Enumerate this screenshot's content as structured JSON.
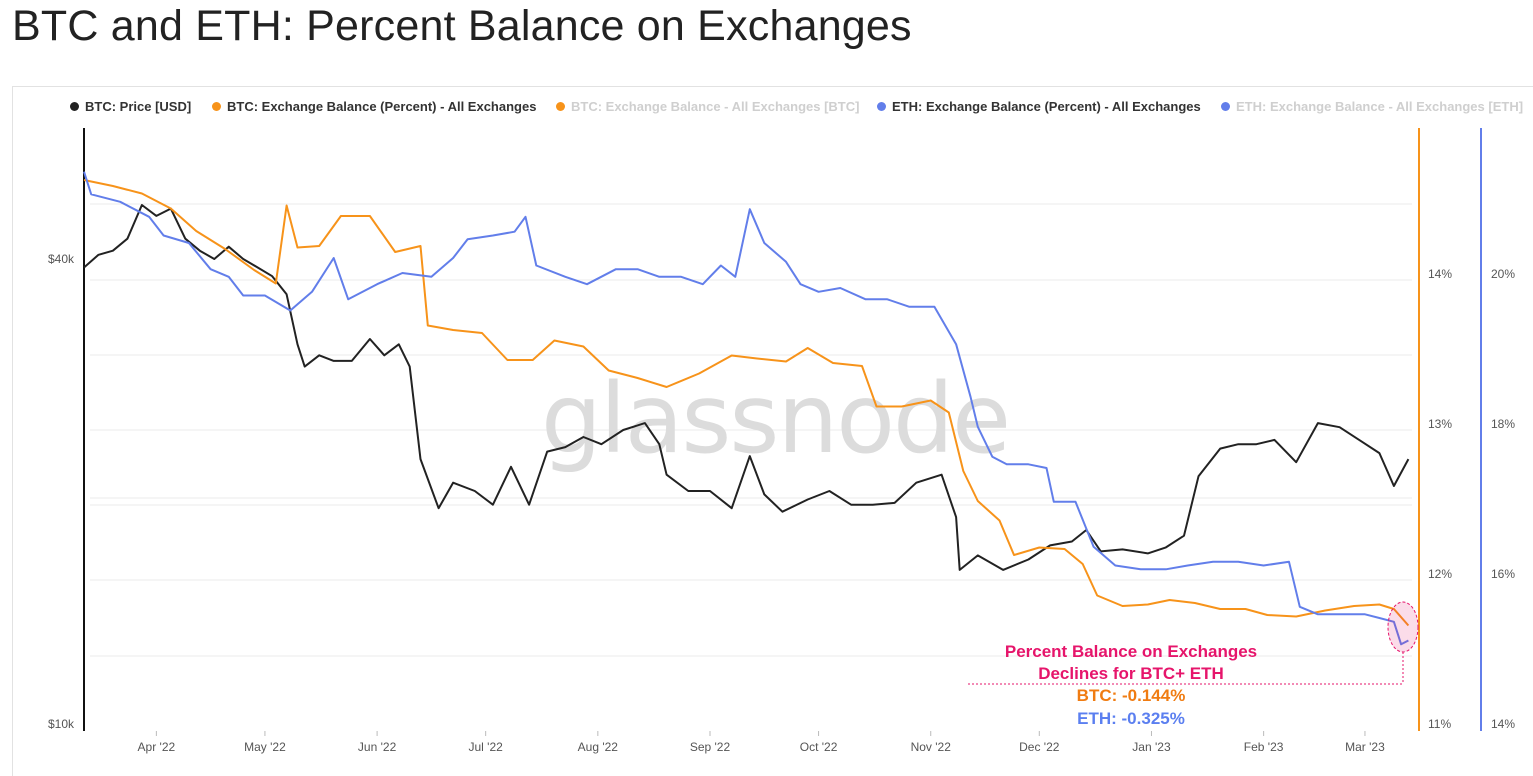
{
  "title": "BTC and ETH: Percent Balance on Exchanges",
  "watermark": "glassnode",
  "legend": [
    {
      "label": "BTC: Price [USD]",
      "color": "#222222",
      "active": true
    },
    {
      "label": "BTC: Exchange Balance (Percent) - All Exchanges",
      "color": "#f7931a",
      "active": true
    },
    {
      "label": "BTC: Exchange Balance - All Exchanges [BTC]",
      "color": "#f7931a",
      "active": false
    },
    {
      "label": "ETH: Exchange Balance (Percent) - All Exchanges",
      "color": "#627eea",
      "active": true
    },
    {
      "label": "ETH: Exchange Balance - All Exchanges [ETH]",
      "color": "#627eea",
      "active": false
    }
  ],
  "annotation": {
    "headline_1": "Percent Balance on Exchanges",
    "headline_2": "Declines for BTC+ ETH",
    "btc": "BTC: -0.144%",
    "eth": "ETH: -0.325%",
    "headline_color": "#e6156b",
    "btc_color": "#f07c12",
    "eth_color": "#5b7ff0"
  },
  "chart_data": {
    "type": "line",
    "x_ticks": [
      "Apr '22",
      "May '22",
      "Jun '22",
      "Jul '22",
      "Aug '22",
      "Sep '22",
      "Oct '22",
      "Nov '22",
      "Dec '22",
      "Jan '23",
      "Feb '23",
      "Mar '23"
    ],
    "left_axis": {
      "ticks": [
        "$40k",
        "$10k"
      ],
      "scale": "log"
    },
    "btc_pct_axis": {
      "ticks": [
        "14%",
        "13%",
        "12%",
        "11%"
      ],
      "range": [
        11,
        15
      ]
    },
    "eth_pct_axis": {
      "ticks": [
        "20%",
        "18%",
        "16%",
        "14%"
      ],
      "range": [
        14,
        22
      ]
    },
    "series": [
      {
        "name": "BTC: Price [USD]",
        "color": "#222222",
        "axis": "price",
        "points": [
          [
            "2022-03-12",
            39000
          ],
          [
            "2022-03-16",
            40500
          ],
          [
            "2022-03-20",
            41000
          ],
          [
            "2022-03-24",
            42500
          ],
          [
            "2022-03-28",
            47000
          ],
          [
            "2022-04-01",
            45500
          ],
          [
            "2022-04-05",
            46500
          ],
          [
            "2022-04-09",
            42500
          ],
          [
            "2022-04-13",
            41000
          ],
          [
            "2022-04-17",
            40000
          ],
          [
            "2022-04-21",
            41500
          ],
          [
            "2022-04-25",
            40000
          ],
          [
            "2022-04-29",
            39000
          ],
          [
            "2022-05-03",
            38000
          ],
          [
            "2022-05-07",
            36000
          ],
          [
            "2022-05-10",
            31000
          ],
          [
            "2022-05-12",
            29000
          ],
          [
            "2022-05-16",
            30000
          ],
          [
            "2022-05-20",
            29500
          ],
          [
            "2022-05-25",
            29500
          ],
          [
            "2022-05-30",
            31500
          ],
          [
            "2022-06-03",
            30000
          ],
          [
            "2022-06-07",
            31000
          ],
          [
            "2022-06-10",
            29000
          ],
          [
            "2022-06-13",
            22000
          ],
          [
            "2022-06-18",
            19000
          ],
          [
            "2022-06-22",
            20500
          ],
          [
            "2022-06-28",
            20000
          ],
          [
            "2022-07-03",
            19200
          ],
          [
            "2022-07-08",
            21500
          ],
          [
            "2022-07-13",
            19200
          ],
          [
            "2022-07-18",
            22500
          ],
          [
            "2022-07-23",
            22800
          ],
          [
            "2022-07-28",
            23500
          ],
          [
            "2022-08-02",
            23000
          ],
          [
            "2022-08-08",
            24000
          ],
          [
            "2022-08-14",
            24500
          ],
          [
            "2022-08-18",
            23000
          ],
          [
            "2022-08-20",
            21000
          ],
          [
            "2022-08-26",
            20000
          ],
          [
            "2022-09-01",
            20000
          ],
          [
            "2022-09-07",
            19000
          ],
          [
            "2022-09-12",
            22200
          ],
          [
            "2022-09-16",
            19800
          ],
          [
            "2022-09-21",
            18800
          ],
          [
            "2022-09-28",
            19500
          ],
          [
            "2022-10-04",
            20000
          ],
          [
            "2022-10-10",
            19200
          ],
          [
            "2022-10-16",
            19200
          ],
          [
            "2022-10-22",
            19300
          ],
          [
            "2022-10-28",
            20500
          ],
          [
            "2022-11-04",
            21000
          ],
          [
            "2022-11-08",
            18500
          ],
          [
            "2022-11-09",
            15800
          ],
          [
            "2022-11-14",
            16500
          ],
          [
            "2022-11-21",
            15800
          ],
          [
            "2022-11-28",
            16300
          ],
          [
            "2022-12-04",
            17000
          ],
          [
            "2022-12-10",
            17200
          ],
          [
            "2022-12-14",
            17800
          ],
          [
            "2022-12-18",
            16700
          ],
          [
            "2022-12-24",
            16800
          ],
          [
            "2022-12-31",
            16600
          ],
          [
            "2023-01-05",
            16900
          ],
          [
            "2023-01-10",
            17500
          ],
          [
            "2023-01-14",
            20900
          ],
          [
            "2023-01-20",
            22700
          ],
          [
            "2023-01-25",
            23000
          ],
          [
            "2023-01-30",
            23000
          ],
          [
            "2023-02-04",
            23300
          ],
          [
            "2023-02-10",
            21800
          ],
          [
            "2023-02-16",
            24500
          ],
          [
            "2023-02-22",
            24200
          ],
          [
            "2023-02-28",
            23200
          ],
          [
            "2023-03-05",
            22400
          ],
          [
            "2023-03-09",
            20300
          ],
          [
            "2023-03-13",
            22000
          ]
        ]
      },
      {
        "name": "BTC: Exchange Balance (Percent) - All Exchanges",
        "color": "#f7931a",
        "axis": "btc_pct",
        "points": [
          [
            "2022-03-12",
            14.62
          ],
          [
            "2022-03-20",
            14.58
          ],
          [
            "2022-03-28",
            14.53
          ],
          [
            "2022-04-05",
            14.43
          ],
          [
            "2022-04-12",
            14.28
          ],
          [
            "2022-04-20",
            14.16
          ],
          [
            "2022-04-28",
            14.02
          ],
          [
            "2022-05-04",
            13.93
          ],
          [
            "2022-05-07",
            14.45
          ],
          [
            "2022-05-10",
            14.17
          ],
          [
            "2022-05-16",
            14.18
          ],
          [
            "2022-05-22",
            14.38
          ],
          [
            "2022-05-30",
            14.38
          ],
          [
            "2022-06-06",
            14.14
          ],
          [
            "2022-06-13",
            14.18
          ],
          [
            "2022-06-15",
            13.65
          ],
          [
            "2022-06-22",
            13.62
          ],
          [
            "2022-06-30",
            13.6
          ],
          [
            "2022-07-07",
            13.42
          ],
          [
            "2022-07-14",
            13.42
          ],
          [
            "2022-07-20",
            13.55
          ],
          [
            "2022-07-28",
            13.51
          ],
          [
            "2022-08-04",
            13.35
          ],
          [
            "2022-08-12",
            13.3
          ],
          [
            "2022-08-20",
            13.24
          ],
          [
            "2022-08-29",
            13.33
          ],
          [
            "2022-09-07",
            13.45
          ],
          [
            "2022-09-14",
            13.43
          ],
          [
            "2022-09-22",
            13.41
          ],
          [
            "2022-09-28",
            13.5
          ],
          [
            "2022-10-05",
            13.4
          ],
          [
            "2022-10-13",
            13.38
          ],
          [
            "2022-10-17",
            13.11
          ],
          [
            "2022-10-24",
            13.11
          ],
          [
            "2022-11-01",
            13.15
          ],
          [
            "2022-11-06",
            13.07
          ],
          [
            "2022-11-10",
            12.68
          ],
          [
            "2022-11-14",
            12.48
          ],
          [
            "2022-11-20",
            12.35
          ],
          [
            "2022-11-24",
            12.12
          ],
          [
            "2022-12-01",
            12.17
          ],
          [
            "2022-12-08",
            12.16
          ],
          [
            "2022-12-13",
            12.06
          ],
          [
            "2022-12-17",
            11.85
          ],
          [
            "2022-12-24",
            11.78
          ],
          [
            "2022-12-31",
            11.79
          ],
          [
            "2023-01-06",
            11.82
          ],
          [
            "2023-01-13",
            11.8
          ],
          [
            "2023-01-20",
            11.76
          ],
          [
            "2023-01-27",
            11.76
          ],
          [
            "2023-02-02",
            11.72
          ],
          [
            "2023-02-10",
            11.71
          ],
          [
            "2023-02-18",
            11.75
          ],
          [
            "2023-02-26",
            11.78
          ],
          [
            "2023-03-05",
            11.79
          ],
          [
            "2023-03-09",
            11.76
          ],
          [
            "2023-03-13",
            11.65
          ]
        ]
      },
      {
        "name": "ETH: Exchange Balance (Percent) - All Exchanges",
        "color": "#627eea",
        "axis": "eth_pct",
        "points": [
          [
            "2022-03-12",
            21.35
          ],
          [
            "2022-03-14",
            21.05
          ],
          [
            "2022-03-22",
            20.95
          ],
          [
            "2022-03-30",
            20.75
          ],
          [
            "2022-04-03",
            20.5
          ],
          [
            "2022-04-10",
            20.4
          ],
          [
            "2022-04-16",
            20.05
          ],
          [
            "2022-04-21",
            19.95
          ],
          [
            "2022-04-25",
            19.7
          ],
          [
            "2022-05-01",
            19.7
          ],
          [
            "2022-05-08",
            19.5
          ],
          [
            "2022-05-14",
            19.75
          ],
          [
            "2022-05-20",
            20.2
          ],
          [
            "2022-05-24",
            19.65
          ],
          [
            "2022-06-01",
            19.85
          ],
          [
            "2022-06-08",
            20.0
          ],
          [
            "2022-06-16",
            19.95
          ],
          [
            "2022-06-22",
            20.2
          ],
          [
            "2022-06-26",
            20.45
          ],
          [
            "2022-07-03",
            20.5
          ],
          [
            "2022-07-09",
            20.55
          ],
          [
            "2022-07-12",
            20.75
          ],
          [
            "2022-07-15",
            20.1
          ],
          [
            "2022-07-23",
            19.95
          ],
          [
            "2022-07-29",
            19.85
          ],
          [
            "2022-08-06",
            20.05
          ],
          [
            "2022-08-12",
            20.05
          ],
          [
            "2022-08-18",
            19.95
          ],
          [
            "2022-08-24",
            19.95
          ],
          [
            "2022-08-30",
            19.85
          ],
          [
            "2022-09-04",
            20.1
          ],
          [
            "2022-09-08",
            19.95
          ],
          [
            "2022-09-12",
            20.85
          ],
          [
            "2022-09-16",
            20.4
          ],
          [
            "2022-09-22",
            20.15
          ],
          [
            "2022-09-26",
            19.85
          ],
          [
            "2022-10-01",
            19.75
          ],
          [
            "2022-10-07",
            19.8
          ],
          [
            "2022-10-14",
            19.65
          ],
          [
            "2022-10-20",
            19.65
          ],
          [
            "2022-10-26",
            19.55
          ],
          [
            "2022-11-02",
            19.55
          ],
          [
            "2022-11-08",
            19.05
          ],
          [
            "2022-11-12",
            18.35
          ],
          [
            "2022-11-14",
            17.95
          ],
          [
            "2022-11-18",
            17.55
          ],
          [
            "2022-11-22",
            17.45
          ],
          [
            "2022-11-28",
            17.45
          ],
          [
            "2022-12-03",
            17.4
          ],
          [
            "2022-12-05",
            16.95
          ],
          [
            "2022-12-11",
            16.95
          ],
          [
            "2022-12-16",
            16.35
          ],
          [
            "2022-12-22",
            16.1
          ],
          [
            "2022-12-29",
            16.05
          ],
          [
            "2023-01-05",
            16.05
          ],
          [
            "2023-01-11",
            16.1
          ],
          [
            "2023-01-18",
            16.15
          ],
          [
            "2023-01-25",
            16.15
          ],
          [
            "2023-02-01",
            16.1
          ],
          [
            "2023-02-08",
            16.15
          ],
          [
            "2023-02-11",
            15.55
          ],
          [
            "2023-02-16",
            15.45
          ],
          [
            "2023-02-23",
            15.45
          ],
          [
            "2023-03-01",
            15.45
          ],
          [
            "2023-03-05",
            15.4
          ],
          [
            "2023-03-09",
            15.35
          ],
          [
            "2023-03-11",
            15.05
          ],
          [
            "2023-03-13",
            15.1
          ]
        ]
      }
    ]
  }
}
